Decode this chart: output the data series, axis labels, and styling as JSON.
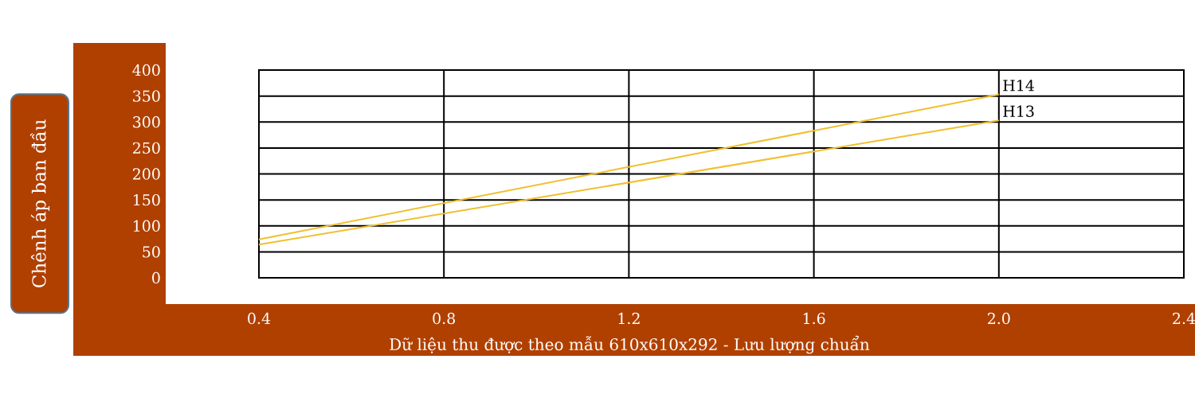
{
  "chart_data": {
    "type": "line",
    "xlabel": "Dữ liệu thu được theo mẫu 610x610x292 - Lưu lượng chuẩn",
    "ylabel": "Chênh áp ban đầu",
    "x": [
      0.4,
      2.0
    ],
    "series": [
      {
        "name": "H14",
        "color": "#f0c030",
        "values": [
          74,
          353
        ]
      },
      {
        "name": "H13",
        "color": "#f0c030",
        "values": [
          64,
          303
        ]
      }
    ],
    "xlim": [
      0.4,
      2.4
    ],
    "xticks": [
      0.4,
      0.8,
      1.2,
      1.6,
      {
        "value": 2.0,
        "label": "2.0"
      },
      2.4
    ],
    "ylim": [
      0,
      400
    ],
    "yticks": [
      0,
      50,
      100,
      150,
      200,
      250,
      300,
      350,
      400
    ],
    "grid": true,
    "marker": "none",
    "line_style": "solid"
  }
}
